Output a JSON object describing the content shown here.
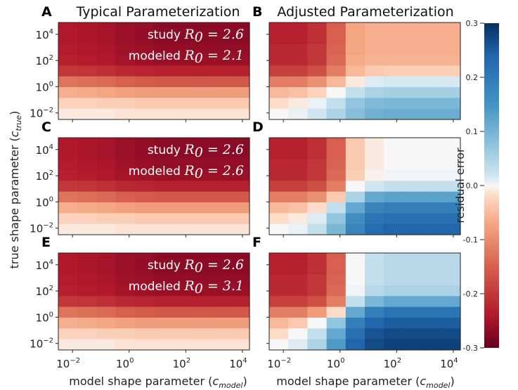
{
  "titles": {
    "left_column": "Typical Parameterization",
    "right_column": "Adjusted Parameterization"
  },
  "axes": {
    "xlabel_main": "model shape parameter (",
    "xlabel_sub": "model",
    "xlabel_close": ")",
    "ylabel_main": "true shape parameter (",
    "ylabel_sub": "true",
    "ylabel_close": ")",
    "tick_base": "10",
    "x_tick_exponents": [
      "−2",
      "0",
      "2",
      "4"
    ],
    "y_tick_exponents": [
      "4",
      "2",
      "0",
      "−2"
    ]
  },
  "colorbar": {
    "label": "residual error",
    "ticks": [
      "0.3",
      "0.2",
      "0.1",
      "0.0",
      "-0.1",
      "-0.2",
      "-0.3"
    ],
    "colormap": "RdBu",
    "low_color": "#67001f",
    "mid_color": "#f7f7f7",
    "high_color": "#053061"
  },
  "chart_data": {
    "type": "heatmap",
    "x_scale": "log",
    "y_scale": "log",
    "x_log10_range": [
      -2.5,
      4.25
    ],
    "y_log10_range": [
      -2.5,
      4.9
    ],
    "value_range": [
      -0.3,
      0.3
    ],
    "panels": [
      {
        "letter": "A",
        "column": "Typical Parameterization",
        "study_label": "study",
        "study_r0": "2.6",
        "modeled_label": "modeled",
        "modeled_r0": "2.1",
        "values": [
          [
            -0.24,
            -0.245,
            -0.25,
            -0.26,
            -0.265,
            -0.27,
            -0.27,
            -0.27,
            -0.27,
            -0.27
          ],
          [
            -0.24,
            -0.245,
            -0.25,
            -0.26,
            -0.265,
            -0.27,
            -0.27,
            -0.27,
            -0.27,
            -0.27
          ],
          [
            -0.235,
            -0.24,
            -0.245,
            -0.255,
            -0.26,
            -0.265,
            -0.265,
            -0.265,
            -0.265,
            -0.265
          ],
          [
            -0.23,
            -0.235,
            -0.24,
            -0.25,
            -0.255,
            -0.26,
            -0.26,
            -0.26,
            -0.26,
            -0.26
          ],
          [
            -0.2,
            -0.205,
            -0.21,
            -0.22,
            -0.225,
            -0.23,
            -0.23,
            -0.23,
            -0.23,
            -0.23
          ],
          [
            -0.13,
            -0.135,
            -0.14,
            -0.15,
            -0.155,
            -0.16,
            -0.16,
            -0.16,
            -0.16,
            -0.16
          ],
          [
            -0.07,
            -0.075,
            -0.08,
            -0.085,
            -0.09,
            -0.09,
            -0.09,
            -0.09,
            -0.09,
            -0.09
          ],
          [
            -0.03,
            -0.03,
            -0.035,
            -0.035,
            -0.04,
            -0.04,
            -0.04,
            -0.04,
            -0.04,
            -0.04
          ],
          [
            -0.01,
            -0.01,
            -0.01,
            -0.015,
            -0.015,
            -0.015,
            -0.015,
            -0.015,
            -0.015,
            -0.015
          ]
        ]
      },
      {
        "letter": "B",
        "column": "Adjusted Parameterization",
        "values": [
          [
            -0.23,
            -0.23,
            -0.21,
            -0.15,
            -0.08,
            -0.07,
            -0.07,
            -0.07,
            -0.07,
            -0.07
          ],
          [
            -0.23,
            -0.23,
            -0.21,
            -0.15,
            -0.08,
            -0.07,
            -0.07,
            -0.07,
            -0.07,
            -0.07
          ],
          [
            -0.22,
            -0.22,
            -0.2,
            -0.145,
            -0.08,
            -0.07,
            -0.07,
            -0.07,
            -0.07,
            -0.07
          ],
          [
            -0.22,
            -0.22,
            -0.2,
            -0.14,
            -0.075,
            -0.065,
            -0.065,
            -0.065,
            -0.065,
            -0.065
          ],
          [
            -0.19,
            -0.19,
            -0.17,
            -0.12,
            -0.06,
            -0.04,
            -0.035,
            -0.035,
            -0.035,
            -0.035
          ],
          [
            -0.12,
            -0.12,
            -0.1,
            -0.06,
            -0.01,
            0.02,
            0.025,
            0.025,
            0.025,
            0.025
          ],
          [
            -0.06,
            -0.05,
            -0.03,
            0.0,
            0.04,
            0.06,
            0.065,
            0.065,
            0.065,
            0.065
          ],
          [
            -0.02,
            -0.01,
            0.01,
            0.04,
            0.08,
            0.095,
            0.1,
            0.1,
            0.1,
            0.1
          ],
          [
            0.0,
            0.01,
            0.03,
            0.06,
            0.09,
            0.11,
            0.115,
            0.115,
            0.115,
            0.115
          ]
        ]
      },
      {
        "letter": "C",
        "column": "Typical Parameterization",
        "study_label": "study",
        "study_r0": "2.6",
        "modeled_label": "modeled",
        "modeled_r0": "2.6",
        "values": [
          [
            -0.24,
            -0.245,
            -0.25,
            -0.26,
            -0.265,
            -0.27,
            -0.27,
            -0.27,
            -0.27,
            -0.27
          ],
          [
            -0.24,
            -0.245,
            -0.25,
            -0.26,
            -0.265,
            -0.27,
            -0.27,
            -0.27,
            -0.27,
            -0.27
          ],
          [
            -0.235,
            -0.24,
            -0.245,
            -0.255,
            -0.26,
            -0.265,
            -0.265,
            -0.265,
            -0.265,
            -0.265
          ],
          [
            -0.23,
            -0.235,
            -0.24,
            -0.25,
            -0.255,
            -0.26,
            -0.26,
            -0.26,
            -0.26,
            -0.26
          ],
          [
            -0.2,
            -0.205,
            -0.21,
            -0.22,
            -0.225,
            -0.23,
            -0.23,
            -0.23,
            -0.23,
            -0.23
          ],
          [
            -0.13,
            -0.135,
            -0.14,
            -0.15,
            -0.155,
            -0.16,
            -0.16,
            -0.16,
            -0.16,
            -0.16
          ],
          [
            -0.07,
            -0.075,
            -0.08,
            -0.085,
            -0.09,
            -0.09,
            -0.09,
            -0.09,
            -0.09,
            -0.09
          ],
          [
            -0.03,
            -0.03,
            -0.035,
            -0.035,
            -0.04,
            -0.04,
            -0.04,
            -0.04,
            -0.04,
            -0.04
          ],
          [
            -0.01,
            -0.01,
            -0.01,
            -0.015,
            -0.015,
            -0.015,
            -0.015,
            -0.015,
            -0.015,
            -0.015
          ]
        ]
      },
      {
        "letter": "D",
        "column": "Adjusted Parameterization",
        "values": [
          [
            -0.23,
            -0.23,
            -0.21,
            -0.15,
            -0.04,
            -0.01,
            0.0,
            0.0,
            0.0,
            0.0
          ],
          [
            -0.23,
            -0.23,
            -0.21,
            -0.15,
            -0.04,
            -0.01,
            0.0,
            0.0,
            0.0,
            0.0
          ],
          [
            -0.22,
            -0.22,
            -0.2,
            -0.145,
            -0.04,
            -0.01,
            0.0,
            0.0,
            0.0,
            0.0
          ],
          [
            -0.22,
            -0.22,
            -0.2,
            -0.14,
            -0.035,
            -0.005,
            0.005,
            0.005,
            0.005,
            0.005
          ],
          [
            -0.19,
            -0.19,
            -0.17,
            -0.12,
            0.0,
            0.03,
            0.04,
            0.04,
            0.04,
            0.04
          ],
          [
            -0.12,
            -0.12,
            -0.1,
            -0.04,
            0.06,
            0.12,
            0.13,
            0.13,
            0.13,
            0.13
          ],
          [
            -0.06,
            -0.05,
            -0.02,
            0.04,
            0.12,
            0.18,
            0.19,
            0.19,
            0.19,
            0.19
          ],
          [
            -0.02,
            -0.01,
            0.02,
            0.08,
            0.16,
            0.21,
            0.22,
            0.22,
            0.22,
            0.22
          ],
          [
            0.0,
            0.01,
            0.04,
            0.1,
            0.18,
            0.23,
            0.24,
            0.24,
            0.24,
            0.24
          ]
        ]
      },
      {
        "letter": "E",
        "column": "Typical Parameterization",
        "study_label": "study",
        "study_r0": "2.6",
        "modeled_label": "modeled",
        "modeled_r0": "3.1",
        "values": [
          [
            -0.24,
            -0.245,
            -0.25,
            -0.26,
            -0.265,
            -0.27,
            -0.27,
            -0.27,
            -0.27,
            -0.27
          ],
          [
            -0.24,
            -0.245,
            -0.25,
            -0.26,
            -0.265,
            -0.27,
            -0.27,
            -0.27,
            -0.27,
            -0.27
          ],
          [
            -0.235,
            -0.24,
            -0.245,
            -0.255,
            -0.26,
            -0.265,
            -0.265,
            -0.265,
            -0.265,
            -0.265
          ],
          [
            -0.23,
            -0.235,
            -0.24,
            -0.25,
            -0.255,
            -0.26,
            -0.26,
            -0.26,
            -0.26,
            -0.26
          ],
          [
            -0.2,
            -0.205,
            -0.21,
            -0.22,
            -0.225,
            -0.23,
            -0.23,
            -0.23,
            -0.23,
            -0.23
          ],
          [
            -0.13,
            -0.135,
            -0.14,
            -0.15,
            -0.155,
            -0.16,
            -0.16,
            -0.16,
            -0.16,
            -0.16
          ],
          [
            -0.07,
            -0.075,
            -0.08,
            -0.085,
            -0.09,
            -0.09,
            -0.09,
            -0.09,
            -0.09,
            -0.09
          ],
          [
            -0.03,
            -0.03,
            -0.035,
            -0.035,
            -0.04,
            -0.04,
            -0.04,
            -0.04,
            -0.04,
            -0.04
          ],
          [
            -0.01,
            -0.01,
            -0.01,
            -0.015,
            -0.015,
            -0.015,
            -0.015,
            -0.015,
            -0.015,
            -0.015
          ]
        ]
      },
      {
        "letter": "F",
        "column": "Adjusted Parameterization",
        "values": [
          [
            -0.23,
            -0.23,
            -0.21,
            -0.15,
            0.0,
            0.04,
            0.05,
            0.05,
            0.05,
            0.05
          ],
          [
            -0.23,
            -0.23,
            -0.21,
            -0.15,
            0.0,
            0.04,
            0.05,
            0.05,
            0.05,
            0.05
          ],
          [
            -0.22,
            -0.22,
            -0.2,
            -0.145,
            0.0,
            0.04,
            0.05,
            0.05,
            0.05,
            0.05
          ],
          [
            -0.22,
            -0.22,
            -0.2,
            -0.14,
            0.005,
            0.05,
            0.06,
            0.06,
            0.06,
            0.06
          ],
          [
            -0.19,
            -0.19,
            -0.17,
            -0.12,
            0.04,
            0.1,
            0.12,
            0.12,
            0.12,
            0.12
          ],
          [
            -0.12,
            -0.12,
            -0.09,
            -0.02,
            0.12,
            0.19,
            0.21,
            0.21,
            0.21,
            0.21
          ],
          [
            -0.06,
            -0.04,
            0.0,
            0.08,
            0.19,
            0.24,
            0.25,
            0.25,
            0.25,
            0.25
          ],
          [
            -0.02,
            0.0,
            0.04,
            0.12,
            0.22,
            0.26,
            0.27,
            0.27,
            0.27,
            0.27
          ],
          [
            0.0,
            0.02,
            0.06,
            0.14,
            0.24,
            0.27,
            0.28,
            0.28,
            0.28,
            0.28
          ]
        ]
      }
    ]
  }
}
